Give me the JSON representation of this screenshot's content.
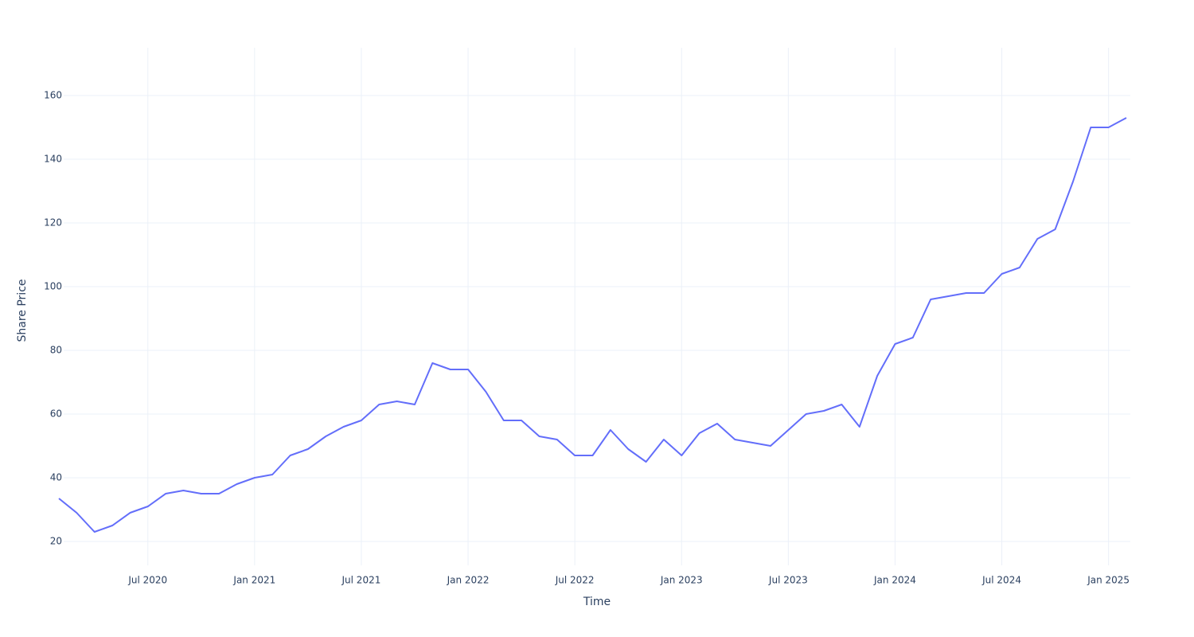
{
  "chart_data": {
    "type": "line",
    "x_label": "Time",
    "y_label": "Share Price",
    "x": [
      "2020-02",
      "2020-03",
      "2020-04",
      "2020-05",
      "2020-06",
      "2020-07",
      "2020-08",
      "2020-09",
      "2020-10",
      "2020-11",
      "2020-12",
      "2021-01",
      "2021-02",
      "2021-03",
      "2021-04",
      "2021-05",
      "2021-06",
      "2021-07",
      "2021-08",
      "2021-09",
      "2021-10",
      "2021-11",
      "2021-12",
      "2022-01",
      "2022-02",
      "2022-03",
      "2022-04",
      "2022-05",
      "2022-06",
      "2022-07",
      "2022-08",
      "2022-09",
      "2022-10",
      "2022-11",
      "2022-12",
      "2023-01",
      "2023-02",
      "2023-03",
      "2023-04",
      "2023-05",
      "2023-06",
      "2023-07",
      "2023-08",
      "2023-09",
      "2023-10",
      "2023-11",
      "2023-12",
      "2024-01",
      "2024-02",
      "2024-03",
      "2024-04",
      "2024-05",
      "2024-06",
      "2024-07",
      "2024-08",
      "2024-09",
      "2024-10",
      "2024-11",
      "2024-12",
      "2025-01",
      "2025-02"
    ],
    "series": [
      {
        "name": "Share Price",
        "color": "#636efa",
        "values": [
          33.5,
          29,
          23,
          25,
          29,
          31,
          35,
          36,
          35,
          35,
          38,
          40,
          41,
          47,
          49,
          53,
          56,
          58,
          63,
          64,
          63,
          76,
          74,
          74,
          67,
          58,
          58,
          53,
          52,
          47,
          47,
          55,
          49,
          45,
          52,
          47,
          54,
          57,
          52,
          51,
          50,
          55,
          60,
          61,
          63,
          56,
          72,
          82,
          84,
          96,
          97,
          98,
          98,
          104,
          106,
          115,
          118,
          133,
          150,
          150,
          153
        ]
      }
    ],
    "xlim": [
      "2020-02",
      "2025-02"
    ],
    "xticks": [
      {
        "value": "2020-07",
        "label": "Jul 2020"
      },
      {
        "value": "2021-01",
        "label": "Jan 2021"
      },
      {
        "value": "2021-07",
        "label": "Jul 2021"
      },
      {
        "value": "2022-01",
        "label": "Jan 2022"
      },
      {
        "value": "2022-07",
        "label": "Jul 2022"
      },
      {
        "value": "2023-01",
        "label": "Jan 2023"
      },
      {
        "value": "2023-07",
        "label": "Jul 2023"
      },
      {
        "value": "2024-01",
        "label": "Jan 2024"
      },
      {
        "value": "2024-07",
        "label": "Jul 2024"
      },
      {
        "value": "2025-01",
        "label": "Jan 2025"
      }
    ],
    "ylim": [
      12.5,
      175
    ],
    "yticks": [
      20,
      40,
      60,
      80,
      100,
      120,
      140,
      160
    ],
    "grid": true
  }
}
